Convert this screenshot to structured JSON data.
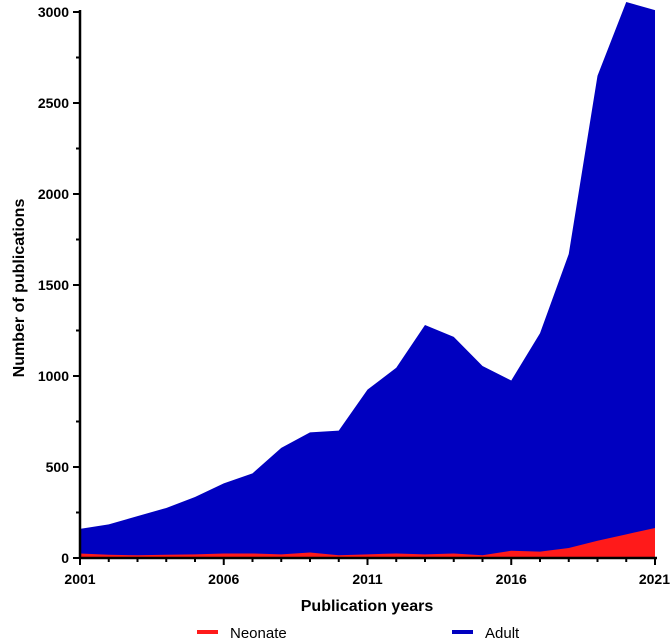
{
  "chart_data": {
    "type": "area",
    "title": "",
    "xlabel": "Publication years",
    "ylabel": "Number of publications",
    "xlim": [
      2001,
      2021
    ],
    "ylim": [
      0,
      3000
    ],
    "x_ticks": [
      "2001",
      "2006",
      "2011",
      "2016",
      "2021"
    ],
    "y_ticks": [
      "0",
      "500",
      "1000",
      "1500",
      "2000",
      "2500",
      "3000"
    ],
    "grid": false,
    "legend_position": "bottom",
    "x": [
      2001,
      2002,
      2003,
      2004,
      2005,
      2006,
      2007,
      2008,
      2009,
      2010,
      2011,
      2012,
      2013,
      2014,
      2015,
      2016,
      2017,
      2018,
      2019,
      2020,
      2021
    ],
    "series": [
      {
        "name": "Adult",
        "color": "#0000c0",
        "values": [
          160,
          185,
          230,
          275,
          335,
          410,
          465,
          605,
          690,
          700,
          925,
          1045,
          1280,
          1215,
          1055,
          975,
          1235,
          1670,
          2650,
          3055,
          3010
        ]
      },
      {
        "name": "Neonate",
        "color": "#ff1a1a",
        "values": [
          25,
          18,
          15,
          18,
          20,
          25,
          25,
          20,
          30,
          15,
          20,
          25,
          20,
          25,
          15,
          40,
          35,
          55,
          95,
          130,
          165
        ]
      }
    ]
  }
}
